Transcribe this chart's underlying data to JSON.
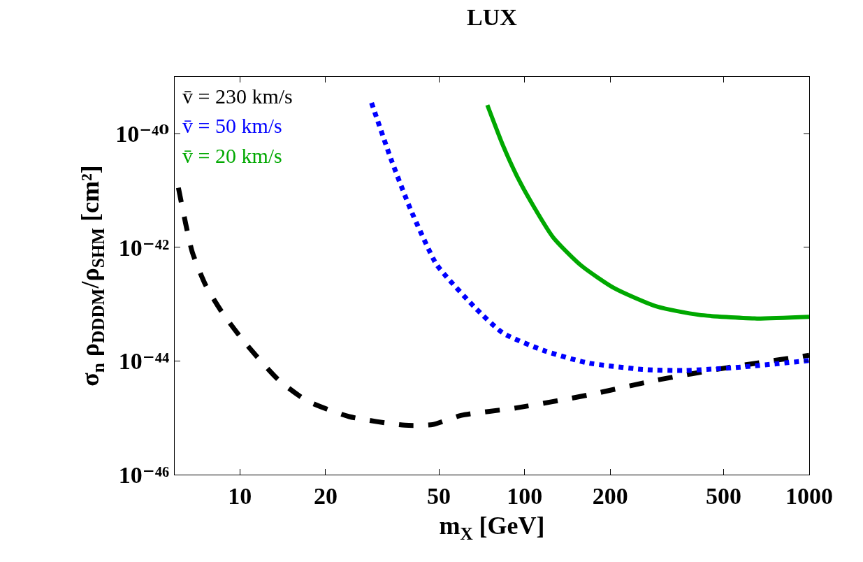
{
  "chart_data": {
    "type": "line",
    "title": "LUX",
    "xlabel": "m$_{X}$ [GeV]",
    "ylabel": "σ$_{n}$ ρ$_{DDDM}$/ρ$_{SHM}$ [cm²]",
    "log": "xy",
    "grid": false,
    "legend": "top left",
    "marker": "none",
    "xlim": [
      5.9,
      1000
    ],
    "xticks": [
      10,
      20,
      50,
      100,
      200,
      500,
      1000
    ],
    "ylim": [
      1e-46,
      1e-39
    ],
    "yticks": [
      {
        "value": 1e-46,
        "label": "10⁻⁴⁶"
      },
      {
        "value": 1e-44,
        "label": "10⁻⁴⁴"
      },
      {
        "value": 1e-42,
        "label": "10⁻⁴²"
      },
      {
        "value": 1e-40,
        "label": "10⁻⁴⁰"
      }
    ],
    "series": [
      {
        "name": "v̄ = 230 km/s",
        "color": "#000000",
        "line_style": "dashed",
        "x": [
          6.08,
          6.8,
          7.6,
          8.7,
          10.5,
          13.7,
          17.2,
          24.2,
          38,
          47.6,
          59.7,
          94,
          166,
          291,
          513,
          1000
        ],
        "values": [
          1.12e-41,
          8.3e-43,
          2.1e-43,
          6.9e-44,
          2e-44,
          4.6e-45,
          2e-45,
          1.05e-45,
          7.4e-46,
          7.6e-46,
          1.1e-45,
          1.5e-45,
          2.5e-45,
          4.6e-45,
          7.6e-45,
          1.26e-44
        ]
      },
      {
        "name": "v̄ = 50 km/s",
        "color": "#0000ff",
        "line_style": "dotted",
        "x": [
          29,
          34,
          39.8,
          48.8,
          53.3,
          67,
          84,
          118,
          166,
          260,
          366,
          574,
          1000
        ],
        "values": [
          3.5e-40,
          3.5e-41,
          4.6e-42,
          5.2e-43,
          3e-43,
          8.7e-44,
          3.1e-44,
          1.5e-44,
          9.3e-45,
          7.1e-45,
          6.8e-45,
          7.8e-45,
          1.02e-44
        ]
      },
      {
        "name": "v̄ = 20 km/s",
        "color": "#00a800",
        "line_style": "solid",
        "x": [
          74,
          84,
          94,
          105,
          126,
          158,
          207,
          291,
          409,
          643,
          1000
        ],
        "values": [
          3.2e-40,
          6.2e-41,
          1.8e-41,
          6.5e-42,
          1.5e-42,
          4.8e-43,
          1.9e-43,
          9.1e-44,
          6.5e-44,
          5.6e-44,
          6e-44
        ]
      }
    ]
  }
}
